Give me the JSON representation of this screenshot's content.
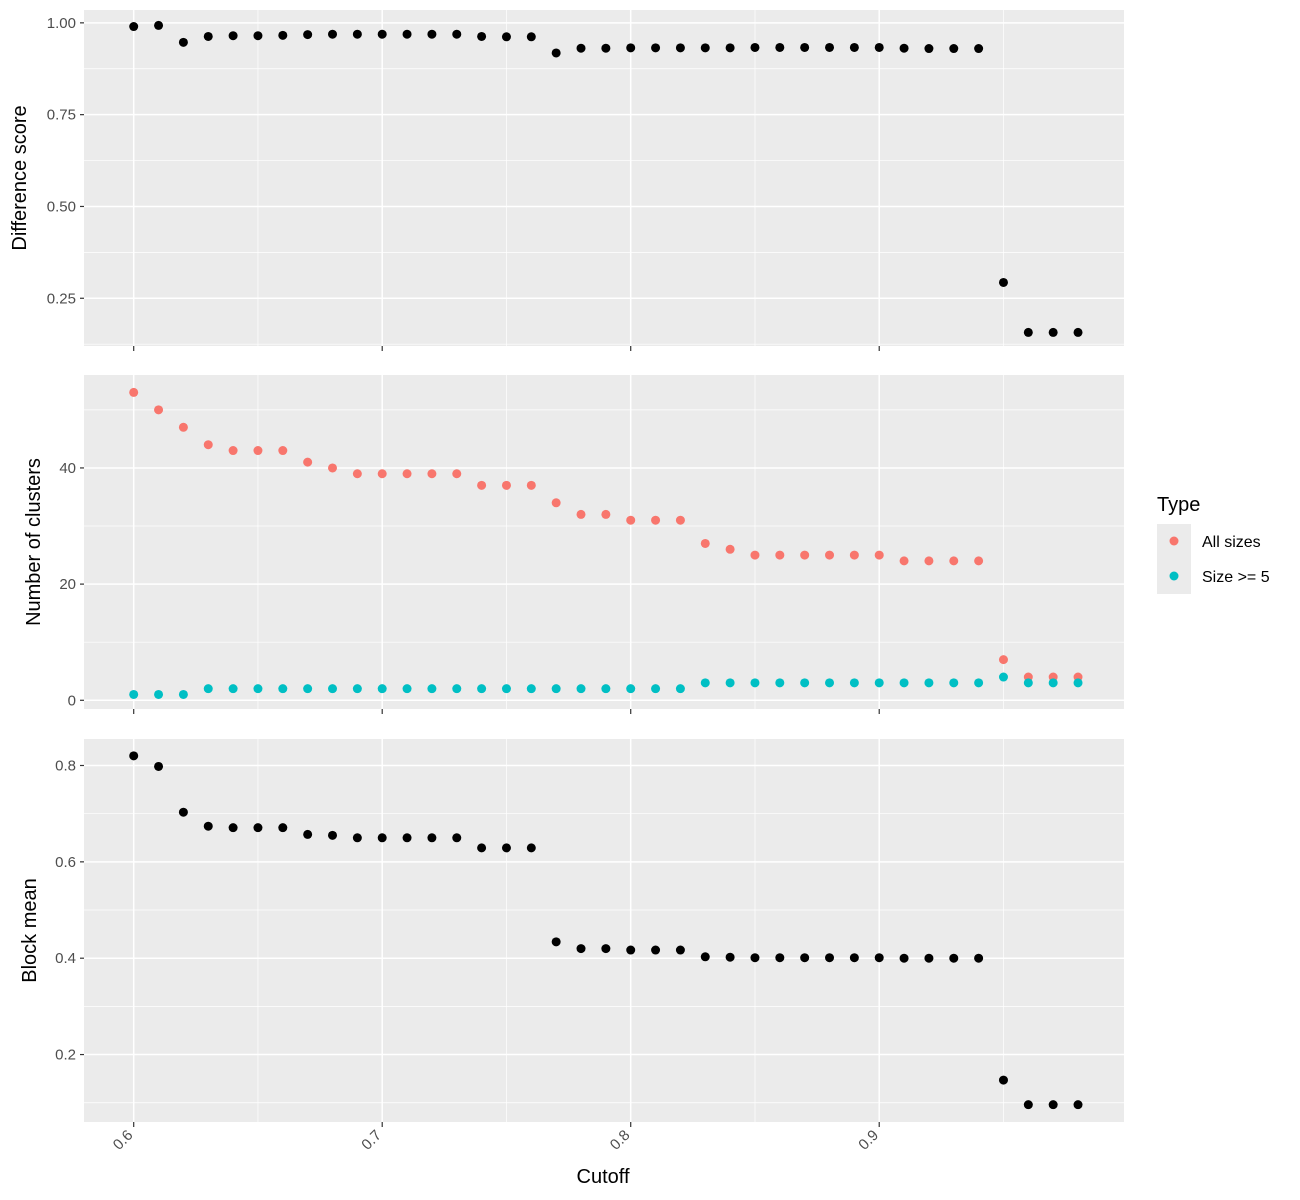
{
  "chart_data": [
    {
      "type": "scatter",
      "ylabel": "Difference score",
      "xlim": [
        0.58,
        0.9985
      ],
      "ylim": [
        0.12,
        1.035
      ],
      "yticks": [
        0.25,
        0.5,
        0.75,
        1.0
      ],
      "ytick_labels": [
        "0.25",
        "0.50",
        "0.75",
        "1.00"
      ],
      "series": [
        {
          "color": "#000000",
          "x": [
            0.6,
            0.61,
            0.62,
            0.63,
            0.64,
            0.65,
            0.66,
            0.67,
            0.68,
            0.69,
            0.7,
            0.71,
            0.72,
            0.73,
            0.74,
            0.75,
            0.76,
            0.77,
            0.78,
            0.79,
            0.8,
            0.81,
            0.82,
            0.83,
            0.84,
            0.85,
            0.86,
            0.87,
            0.88,
            0.89,
            0.9,
            0.91,
            0.92,
            0.93,
            0.94,
            0.95,
            0.96,
            0.97,
            0.98
          ],
          "y": [
            0.99,
            0.993,
            0.947,
            0.963,
            0.965,
            0.965,
            0.966,
            0.968,
            0.969,
            0.969,
            0.969,
            0.969,
            0.969,
            0.969,
            0.963,
            0.962,
            0.962,
            0.918,
            0.931,
            0.931,
            0.932,
            0.932,
            0.932,
            0.932,
            0.932,
            0.933,
            0.933,
            0.933,
            0.933,
            0.933,
            0.933,
            0.931,
            0.93,
            0.93,
            0.93,
            0.293,
            0.157,
            0.157,
            0.157
          ]
        }
      ]
    },
    {
      "type": "scatter",
      "ylabel": "Number of clusters",
      "xlim": [
        0.58,
        0.9985
      ],
      "ylim": [
        -1.5,
        56
      ],
      "yticks": [
        0,
        20,
        40
      ],
      "ytick_labels": [
        "0",
        "20",
        "40"
      ],
      "series": [
        {
          "name": "All sizes",
          "color": "#F8766D",
          "x": [
            0.6,
            0.61,
            0.62,
            0.63,
            0.64,
            0.65,
            0.66,
            0.67,
            0.68,
            0.69,
            0.7,
            0.71,
            0.72,
            0.73,
            0.74,
            0.75,
            0.76,
            0.77,
            0.78,
            0.79,
            0.8,
            0.81,
            0.82,
            0.83,
            0.84,
            0.85,
            0.86,
            0.87,
            0.88,
            0.89,
            0.9,
            0.91,
            0.92,
            0.93,
            0.94,
            0.95,
            0.96,
            0.97,
            0.98
          ],
          "y": [
            53,
            50,
            47,
            44,
            43,
            43,
            43,
            41,
            40,
            39,
            39,
            39,
            39,
            39,
            37,
            37,
            37,
            34,
            32,
            32,
            31,
            31,
            31,
            27,
            26,
            25,
            25,
            25,
            25,
            25,
            25,
            24,
            24,
            24,
            24,
            7,
            4,
            4,
            4
          ]
        },
        {
          "name": "Size >= 5",
          "color": "#00BFC4",
          "x": [
            0.6,
            0.61,
            0.62,
            0.63,
            0.64,
            0.65,
            0.66,
            0.67,
            0.68,
            0.69,
            0.7,
            0.71,
            0.72,
            0.73,
            0.74,
            0.75,
            0.76,
            0.77,
            0.78,
            0.79,
            0.8,
            0.81,
            0.82,
            0.83,
            0.84,
            0.85,
            0.86,
            0.87,
            0.88,
            0.89,
            0.9,
            0.91,
            0.92,
            0.93,
            0.94,
            0.95,
            0.96,
            0.97,
            0.98
          ],
          "y": [
            1,
            1,
            1,
            2,
            2,
            2,
            2,
            2,
            2,
            2,
            2,
            2,
            2,
            2,
            2,
            2,
            2,
            2,
            2,
            2,
            2,
            2,
            2,
            3,
            3,
            3,
            3,
            3,
            3,
            3,
            3,
            3,
            3,
            3,
            3,
            4,
            3,
            3,
            3
          ]
        }
      ]
    },
    {
      "type": "scatter",
      "xlabel": "Cutoff",
      "ylabel": "Block mean",
      "xlim": [
        0.58,
        0.9985
      ],
      "ylim": [
        0.06,
        0.855
      ],
      "yticks": [
        0.2,
        0.4,
        0.6,
        0.8
      ],
      "ytick_labels": [
        "0.2",
        "0.4",
        "0.6",
        "0.8"
      ],
      "xticks": [
        0.6,
        0.7,
        0.8,
        0.9
      ],
      "xtick_labels": [
        "0.6",
        "0.7",
        "0.8",
        "0.9"
      ],
      "series": [
        {
          "color": "#000000",
          "x": [
            0.6,
            0.61,
            0.62,
            0.63,
            0.64,
            0.65,
            0.66,
            0.67,
            0.68,
            0.69,
            0.7,
            0.71,
            0.72,
            0.73,
            0.74,
            0.75,
            0.76,
            0.77,
            0.78,
            0.79,
            0.8,
            0.81,
            0.82,
            0.83,
            0.84,
            0.85,
            0.86,
            0.87,
            0.88,
            0.89,
            0.9,
            0.91,
            0.92,
            0.93,
            0.94,
            0.95,
            0.96,
            0.97,
            0.98
          ],
          "y": [
            0.82,
            0.798,
            0.703,
            0.674,
            0.671,
            0.671,
            0.671,
            0.657,
            0.655,
            0.65,
            0.65,
            0.65,
            0.65,
            0.65,
            0.629,
            0.629,
            0.629,
            0.434,
            0.42,
            0.42,
            0.417,
            0.417,
            0.417,
            0.403,
            0.402,
            0.401,
            0.401,
            0.401,
            0.401,
            0.401,
            0.401,
            0.4,
            0.4,
            0.4,
            0.4,
            0.147,
            0.096,
            0.096,
            0.096
          ]
        }
      ]
    }
  ],
  "legend": {
    "title": "Type",
    "placement": "right",
    "items": [
      {
        "label": "All sizes",
        "color": "#F8766D"
      },
      {
        "label": "Size >= 5",
        "color": "#00BFC4"
      }
    ]
  },
  "colors": {
    "panel_background": "#EBEBEB",
    "grid": "#FFFFFF",
    "tick": "#333333"
  }
}
